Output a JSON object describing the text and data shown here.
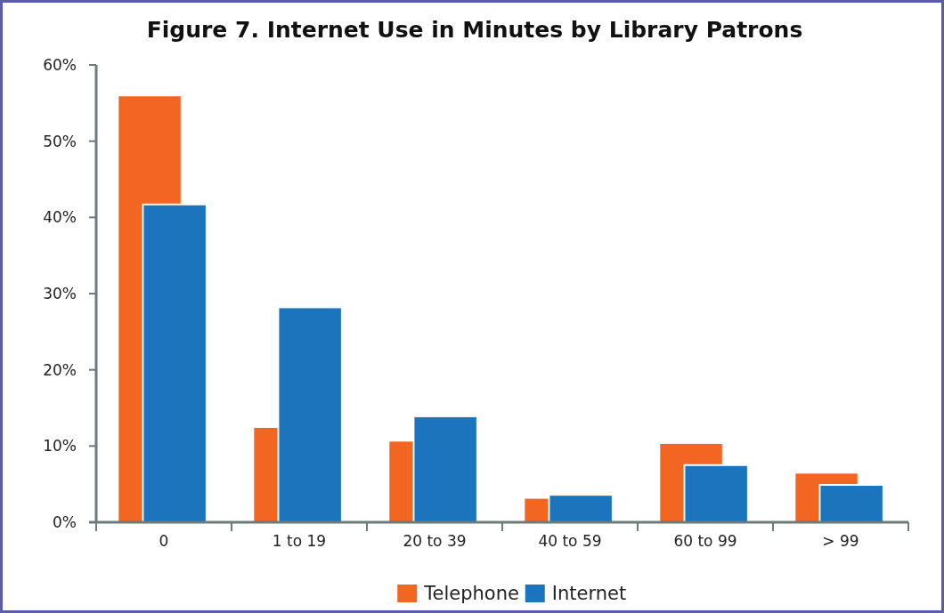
{
  "chart_data": {
    "type": "bar",
    "title": "Figure 7. Internet Use in Minutes by Library Patrons",
    "categories": [
      "0",
      "1 to 19",
      "20 to 39",
      "40 to 59",
      "60 to 99",
      "> 99"
    ],
    "series": [
      {
        "name": "Telephone",
        "color": "#f26522",
        "values": [
          56,
          12.5,
          10.7,
          3.2,
          10.4,
          6.5
        ]
      },
      {
        "name": "Internet",
        "color": "#1c75bc",
        "values": [
          41.7,
          28.2,
          13.9,
          3.6,
          7.5,
          4.9
        ]
      }
    ],
    "ylim": [
      0,
      60
    ],
    "yticks": [
      {
        "value": 0,
        "label": "0%"
      },
      {
        "value": 10,
        "label": "10%"
      },
      {
        "value": 20,
        "label": "20%"
      },
      {
        "value": 30,
        "label": "30%"
      },
      {
        "value": 40,
        "label": "40%"
      },
      {
        "value": 50,
        "label": "50%"
      },
      {
        "value": 60,
        "label": "60%"
      }
    ],
    "legend": "bottom"
  }
}
